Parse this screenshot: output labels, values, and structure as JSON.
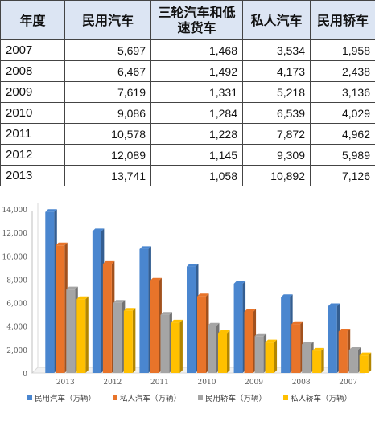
{
  "table": {
    "headers": [
      "年度",
      "民用汽车",
      "三轮汽车和低速货车",
      "私人汽车",
      "民用轿车"
    ],
    "rows": [
      [
        "2007",
        "5,697",
        "1,468",
        "3,534",
        "1,958"
      ],
      [
        "2008",
        "6,467",
        "1,492",
        "4,173",
        "2,438"
      ],
      [
        "2009",
        "7,619",
        "1,331",
        "5,218",
        "3,136"
      ],
      [
        "2010",
        "9,086",
        "1,284",
        "6,539",
        "4,029"
      ],
      [
        "2011",
        "10,578",
        "1,228",
        "7,872",
        "4,962"
      ],
      [
        "2012",
        "12,089",
        "1,145",
        "9,309",
        "5,989"
      ],
      [
        "2013",
        "13,741",
        "1,058",
        "10,892",
        "7,126"
      ]
    ]
  },
  "chart_data": {
    "type": "bar",
    "categories": [
      "2013",
      "2012",
      "2011",
      "2010",
      "2009",
      "2008",
      "2007"
    ],
    "series": [
      {
        "name": "民用汽车（万辆）",
        "color": "#4a86cf",
        "values": [
          13741,
          12089,
          10578,
          9086,
          7619,
          6467,
          5697
        ]
      },
      {
        "name": "私人汽车（万辆）",
        "color": "#e8742a",
        "values": [
          10892,
          9309,
          7872,
          6539,
          5218,
          4173,
          3534
        ]
      },
      {
        "name": "民用轿车（万辆）",
        "color": "#a5a5a5",
        "values": [
          7126,
          5989,
          4962,
          4029,
          3136,
          2438,
          1958
        ]
      },
      {
        "name": "私人轿车（万辆）",
        "color": "#ffc000",
        "values": [
          6300,
          5300,
          4300,
          3400,
          2600,
          1900,
          1500
        ]
      }
    ],
    "yticks": [
      "0",
      "2,000",
      "4,000",
      "6,000",
      "8,000",
      "10,000",
      "12,000",
      "14,000"
    ],
    "ylim": [
      0,
      14000
    ],
    "style": "3d-clustered-column",
    "grid": false,
    "legend_position": "bottom"
  }
}
